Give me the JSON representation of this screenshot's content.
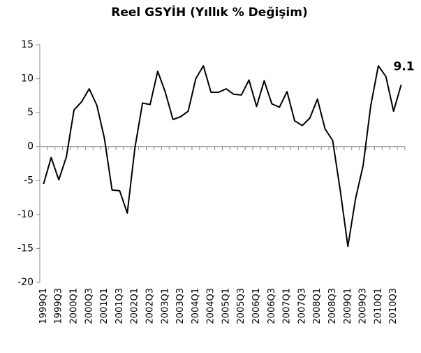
{
  "chart_data": {
    "type": "line",
    "title": "Reel GSYİH (Yıllık % Değişim)",
    "categories": [
      "1999Q1",
      null,
      "1999Q3",
      null,
      "2000Q1",
      null,
      "2000Q3",
      null,
      "2001Q1",
      null,
      "2001Q3",
      null,
      "2002Q1",
      null,
      "2002Q3",
      null,
      "2003Q1",
      null,
      "2003Q3",
      null,
      "2004Q1",
      null,
      "2004Q3",
      null,
      "2005Q1",
      null,
      "2005Q3",
      null,
      "2006Q1",
      null,
      "2006Q3",
      null,
      "2007Q1",
      null,
      "2007Q3",
      null,
      "2008Q1",
      null,
      "2008Q3",
      null,
      "2009Q1",
      null,
      "2009Q3",
      null,
      "2010Q1",
      null,
      "2010Q3",
      null
    ],
    "series": [
      {
        "color": "#000000",
        "values": [
          -5.5,
          -1.6,
          -4.9,
          -1.5,
          5.4,
          6.6,
          8.5,
          6.1,
          1.2,
          -6.4,
          -6.5,
          -9.8,
          -0.2,
          6.4,
          6.2,
          11.1,
          8.0,
          4.0,
          4.4,
          5.2,
          10.0,
          11.9,
          8.0,
          8.0,
          8.5,
          7.7,
          7.6,
          9.8,
          5.9,
          9.7,
          6.3,
          5.8,
          8.1,
          3.8,
          3.1,
          4.2,
          7.0,
          2.6,
          0.9,
          -6.5,
          -14.7,
          -7.7,
          -2.8,
          6.0,
          11.9,
          10.3,
          5.2,
          9.1
        ]
      }
    ],
    "ylim": [
      -20,
      15
    ],
    "yticks": [
      -20,
      -15,
      -10,
      -5,
      0,
      5,
      10,
      15
    ],
    "grid": false
  }
}
